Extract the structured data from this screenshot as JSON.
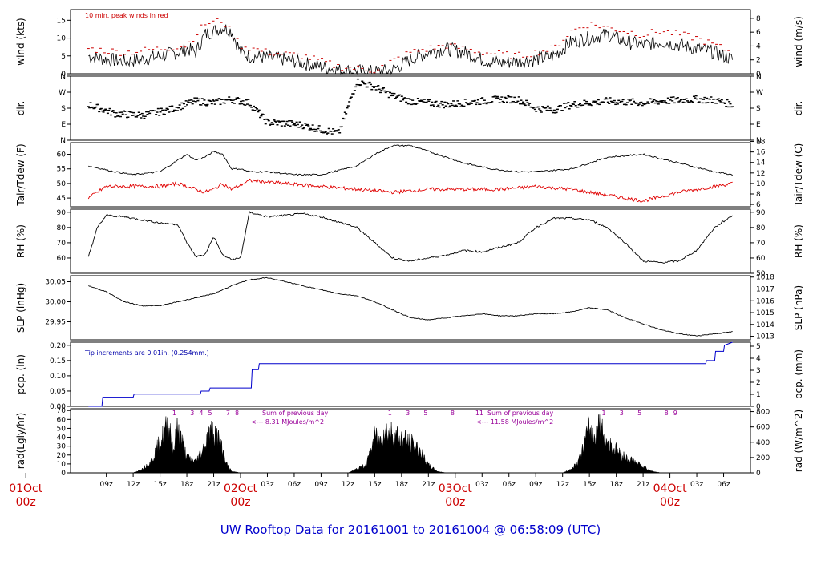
{
  "title": "UW Rooftop Data for 20161001  to  20161004 @ 06:58:09  (UTC)",
  "colors": {
    "main": "#000000",
    "peak": "#cc0000",
    "dew": "#e00000",
    "pcp": "#0000cc",
    "rad_label": "#990099",
    "title": "#0000cc",
    "day": "#cc0000"
  },
  "x_ticks": [
    "09z",
    "12z",
    "15z",
    "18z",
    "21z",
    "03z",
    "06z",
    "09z",
    "12z",
    "15z",
    "18z",
    "21z",
    "03z",
    "06z",
    "09z",
    "12z",
    "15z",
    "18z",
    "21z",
    "03z",
    "06z"
  ],
  "day_labels": [
    {
      "day": "01Oct",
      "hour": "00z"
    },
    {
      "day": "02Oct",
      "hour": "00z"
    },
    {
      "day": "03Oct",
      "hour": "00z"
    },
    {
      "day": "04Oct",
      "hour": "00z"
    }
  ],
  "panels": {
    "wind": {
      "ylabel_left": "wind (kts)",
      "ylabel_right": "wind (m/s)",
      "left_ticks": [
        "0",
        "5",
        "10",
        "15"
      ],
      "right_ticks": [
        "0",
        "2",
        "4",
        "6",
        "8"
      ],
      "note": "10 min. peak winds in red"
    },
    "dir": {
      "ylabel_left": "dir.",
      "ylabel_right": "dir.",
      "left_ticks": [
        "N",
        "E",
        "S",
        "W",
        "N"
      ],
      "right_ticks": [
        "N",
        "E",
        "S",
        "W",
        "N"
      ]
    },
    "temp": {
      "ylabel_left": "Tair/Tdew (F)",
      "ylabel_right": "Tair/Tdew (C)",
      "left_ticks": [
        "45",
        "50",
        "55",
        "60"
      ],
      "right_ticks": [
        "6",
        "8",
        "10",
        "12",
        "14",
        "16",
        "18"
      ]
    },
    "rh": {
      "ylabel_left": "RH (%)",
      "ylabel_right": "RH (%)",
      "left_ticks": [
        "60",
        "70",
        "80",
        "90"
      ],
      "right_ticks": [
        "50",
        "60",
        "70",
        "80",
        "90"
      ]
    },
    "slp": {
      "ylabel_left": "SLP (inHg)",
      "ylabel_right": "SLP (hPa)",
      "left_ticks": [
        "29.95",
        "30.00",
        "30.05"
      ],
      "right_ticks": [
        "1013",
        "1014",
        "1015",
        "1016",
        "1017",
        "1018"
      ]
    },
    "pcp": {
      "ylabel_left": "pcp. (in)",
      "ylabel_right": "pcp. (mm)",
      "left_ticks": [
        "0.00",
        "0.05",
        "0.10",
        "0.15",
        "0.20"
      ],
      "right_ticks": [
        "0",
        "1",
        "2",
        "3",
        "4",
        "5"
      ],
      "note": "Tip increments are 0.01in. (0.254mm.)"
    },
    "rad": {
      "ylabel_left": "rad(Lgly/hr)",
      "ylabel_right": "rad (W/m^2)",
      "left_ticks": [
        "0",
        "10",
        "20",
        "30",
        "40",
        "50",
        "60",
        "70"
      ],
      "right_ticks": [
        "0",
        "200",
        "400",
        "600",
        "800"
      ],
      "sums": [
        {
          "line1": "Sum of previous day",
          "line2": "<--- 8.31 MJoules/m^2"
        },
        {
          "line1": "Sum of previous day",
          "line2": "<--- 11.58 MJoules/m^2"
        }
      ],
      "hour_marks": [
        [
          "1",
          "3",
          "4",
          "5",
          "7",
          "8"
        ],
        [
          "1",
          "3",
          "5",
          "8",
          "11"
        ],
        [
          "1",
          "3",
          "5",
          "8",
          "9"
        ]
      ]
    }
  },
  "chart_data": {
    "type": "line",
    "title": "UW Rooftop Data for 20161001  to  20161004 @ 06:58:09  (UTC)",
    "x_unit": "hours since 20161001 07z",
    "series": [
      {
        "name": "wind (kts)",
        "x": [
          0,
          2,
          4,
          6,
          8,
          10,
          11,
          12,
          13,
          14,
          15,
          16,
          17,
          18,
          20,
          22,
          24,
          26,
          28,
          30,
          32,
          34,
          36,
          38,
          40,
          42,
          44,
          46,
          48,
          50,
          52,
          54,
          56,
          58,
          60,
          62,
          64,
          66,
          68,
          70,
          72
        ],
        "values": [
          5,
          4,
          3.5,
          4,
          5,
          6,
          7,
          6,
          11,
          12,
          13,
          12,
          6,
          5,
          4.5,
          4,
          3,
          2,
          1,
          0.8,
          0.5,
          1,
          4,
          6,
          7,
          6,
          4,
          3,
          3.5,
          4,
          5,
          9,
          10,
          11,
          9,
          8,
          9,
          8,
          7,
          6,
          4
        ]
      },
      {
        "name": "10 min. peak winds",
        "x": [
          0,
          4,
          8,
          11,
          13,
          15,
          17,
          20,
          24,
          28,
          32,
          36,
          40,
          44,
          48,
          52,
          54,
          56,
          58,
          60,
          62,
          64,
          66,
          68,
          70,
          72
        ],
        "values": [
          7,
          6,
          7,
          8,
          14,
          15,
          8,
          6,
          5,
          2,
          1,
          6,
          8,
          6,
          5,
          7,
          12,
          14,
          13,
          12,
          11,
          12,
          11,
          10,
          8,
          6
        ]
      },
      {
        "name": "dir. (deg)",
        "x": [
          0,
          3,
          6,
          9,
          12,
          14,
          16,
          18,
          20,
          22,
          24,
          26,
          28,
          30,
          32,
          34,
          36,
          38,
          40,
          42,
          44,
          46,
          48,
          50,
          52,
          54,
          56,
          58,
          60,
          62,
          64,
          66,
          68,
          70,
          72
        ],
        "values": [
          200,
          150,
          140,
          170,
          220,
          210,
          230,
          210,
          100,
          95,
          85,
          60,
          40,
          330,
          300,
          250,
          220,
          210,
          200,
          210,
          220,
          230,
          230,
          180,
          170,
          200,
          210,
          220,
          215,
          210,
          220,
          225,
          230,
          225,
          200
        ]
      },
      {
        "name": "Tair (F)",
        "x": [
          0,
          3,
          5,
          8,
          10,
          11,
          12,
          13,
          14,
          15,
          16,
          17,
          18,
          20,
          23,
          26,
          30,
          32,
          34,
          36,
          38,
          40,
          42,
          45,
          48,
          50,
          54,
          58,
          62,
          66,
          70,
          72
        ],
        "values": [
          56,
          54,
          53,
          54,
          58,
          60,
          58,
          59,
          61,
          60,
          55,
          55,
          54,
          54,
          53,
          53,
          56,
          60,
          63,
          63,
          61,
          59,
          57,
          55,
          54,
          54,
          55,
          59,
          60,
          57,
          54,
          53
        ]
      },
      {
        "name": "Tdew (F)",
        "x": [
          0,
          2,
          5,
          8,
          10,
          12,
          13,
          14,
          15,
          16,
          18,
          22,
          26,
          30,
          34,
          38,
          42,
          46,
          50,
          54,
          58,
          62,
          66,
          70,
          72
        ],
        "values": [
          45,
          49,
          49,
          49,
          50,
          48,
          47,
          48,
          50,
          48,
          51,
          50,
          49,
          48,
          47,
          48,
          48,
          48,
          49,
          48,
          46,
          44,
          47,
          49,
          50
        ]
      },
      {
        "name": "RH (%)",
        "x": [
          0,
          1,
          2,
          4,
          6,
          8,
          10,
          11,
          12,
          13,
          14,
          15,
          16,
          17,
          18,
          20,
          24,
          26,
          30,
          32,
          34,
          36,
          38,
          40,
          42,
          44,
          46,
          48,
          50,
          52,
          54,
          56,
          58,
          60,
          62,
          64,
          66,
          68,
          70,
          72
        ],
        "values": [
          61,
          80,
          88,
          87,
          85,
          83,
          82,
          70,
          61,
          62,
          74,
          62,
          59,
          60,
          90,
          87,
          89,
          87,
          80,
          70,
          60,
          58,
          60,
          62,
          65,
          64,
          67,
          70,
          80,
          86,
          86,
          85,
          80,
          70,
          58,
          57,
          58,
          65,
          80,
          88
        ]
      },
      {
        "name": "SLP (inHg)",
        "x": [
          0,
          2,
          4,
          6,
          8,
          10,
          12,
          14,
          16,
          18,
          20,
          22,
          24,
          26,
          28,
          30,
          32,
          34,
          36,
          38,
          40,
          42,
          44,
          46,
          48,
          50,
          52,
          54,
          56,
          58,
          60,
          62,
          64,
          66,
          68,
          70,
          72
        ],
        "values": [
          30.04,
          30.025,
          30.0,
          29.99,
          29.99,
          30.0,
          30.01,
          30.02,
          30.04,
          30.055,
          30.06,
          30.05,
          30.04,
          30.03,
          30.02,
          30.015,
          30.0,
          29.98,
          29.96,
          29.955,
          29.96,
          29.965,
          29.97,
          29.965,
          29.965,
          29.97,
          29.97,
          29.975,
          29.985,
          29.98,
          29.96,
          29.945,
          29.93,
          29.92,
          29.915,
          29.92,
          29.925
        ]
      },
      {
        "name": "pcp. (in)",
        "x": [
          0,
          1.5,
          1.6,
          5,
          5.1,
          12.5,
          12.6,
          13.5,
          13.6,
          18.2,
          18.3,
          19,
          19.1,
          69,
          69.1,
          70,
          70.1,
          71,
          71.1,
          72
        ],
        "values": [
          0,
          0,
          0.03,
          0.03,
          0.04,
          0.04,
          0.05,
          0.05,
          0.06,
          0.06,
          0.12,
          0.12,
          0.14,
          0.14,
          0.15,
          0.15,
          0.18,
          0.18,
          0.2,
          0.21
        ]
      },
      {
        "name": "rad (Lgly/hr)",
        "x": [
          5,
          6,
          7,
          8,
          9,
          9.5,
          10,
          10.5,
          11,
          12,
          13,
          13.5,
          14,
          14.5,
          15,
          15.5,
          16,
          17,
          29,
          30,
          31,
          31.5,
          32,
          32.5,
          33,
          34,
          35,
          36,
          37,
          38,
          39,
          40,
          53,
          54,
          55,
          55.5,
          56,
          56.5,
          57,
          58,
          59,
          60,
          61,
          62,
          63,
          64
        ],
        "values": [
          0,
          5,
          15,
          40,
          65,
          30,
          60,
          40,
          20,
          15,
          35,
          50,
          55,
          45,
          30,
          10,
          2,
          0,
          0,
          5,
          10,
          25,
          50,
          40,
          55,
          52,
          45,
          40,
          30,
          10,
          2,
          0,
          0,
          5,
          20,
          40,
          60,
          45,
          65,
          40,
          30,
          20,
          15,
          8,
          2,
          0
        ]
      }
    ],
    "xlim": [
      -2,
      74
    ],
    "grid": false
  }
}
